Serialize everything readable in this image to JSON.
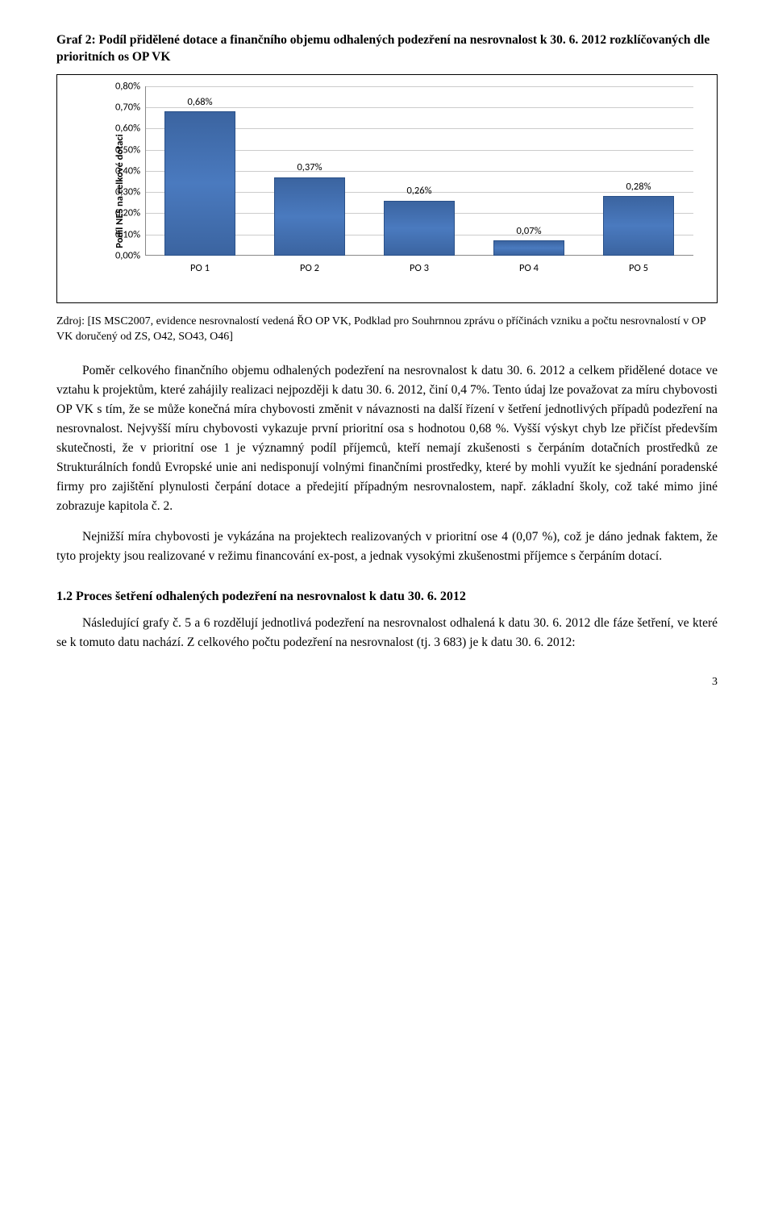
{
  "chart_title": "Graf 2: Podíl přidělené dotace a finančního objemu odhalených podezření na nesrovnalost k 30. 6. 2012 rozklíčovaných dle prioritních os OP VK",
  "chart": {
    "type": "bar",
    "ylabel": "Podíl NES na celkové dotaci",
    "categories": [
      "PO 1",
      "PO 2",
      "PO 3",
      "PO 4",
      "PO 5"
    ],
    "values_pct": [
      0.68,
      0.37,
      0.26,
      0.07,
      0.28
    ],
    "value_labels": [
      "0,68%",
      "0,37%",
      "0,26%",
      "0,07%",
      "0,28%"
    ],
    "ylim_max": 0.8,
    "yticks": [
      {
        "v": 0.0,
        "label": "0,00%"
      },
      {
        "v": 0.1,
        "label": "0,10%"
      },
      {
        "v": 0.2,
        "label": "0,20%"
      },
      {
        "v": 0.3,
        "label": "0,30%"
      },
      {
        "v": 0.4,
        "label": "0,40%"
      },
      {
        "v": 0.5,
        "label": "0,50%"
      },
      {
        "v": 0.6,
        "label": "0,60%"
      },
      {
        "v": 0.7,
        "label": "0,70%"
      },
      {
        "v": 0.8,
        "label": "0,80%"
      }
    ],
    "bar_color": "#4a7abf",
    "grid_color": "#cccccc",
    "background": "#ffffff",
    "label_fontsize": 12.5
  },
  "source_line": "Zdroj: [IS MSC2007, evidence nesrovnalostí vedená ŘO OP VK, Podklad pro Souhrnnou zprávu o příčinách vzniku a počtu nesrovnalostí v OP VK doručený od ZS, O42, SO43, O46]",
  "para1": "Poměr celkového finančního objemu odhalených podezření na nesrovnalost k datu 30. 6. 2012 a celkem přidělené dotace ve vztahu k projektům, které zahájily realizaci nejpozději k datu 30. 6. 2012, činí 0,4 7%. Tento údaj lze považovat za míru chybovosti OP VK s tím, že se může konečná míra chybovosti změnit v návaznosti na další řízení v šetření jednotlivých případů podezření na nesrovnalost. Nejvyšší míru chybovosti vykazuje první prioritní osa s hodnotou 0,68 %. Vyšší výskyt chyb lze přičíst především skutečnosti, že v prioritní ose 1 je významný podíl příjemců, kteří nemají zkušenosti s čerpáním dotačních prostředků ze Strukturálních fondů Evropské unie ani nedisponují volnými finančními prostředky, které by mohli využít ke sjednání poradenské firmy pro zajištění plynulosti čerpání dotace a předejití případným nesrovnalostem, např. základní školy, což také mimo jiné zobrazuje kapitola č. 2.",
  "para2": "Nejnižší míra chybovosti je vykázána na projektech realizovaných v prioritní ose 4 (0,07 %), což je dáno jednak faktem, že tyto projekty jsou realizované v režimu financování ex-post, a jednak vysokými zkušenostmi příjemce s čerpáním dotací.",
  "section_heading": "1.2    Proces šetření odhalených podezření na nesrovnalost k datu 30. 6. 2012",
  "para3": "Následující grafy č. 5 a 6 rozdělují jednotlivá podezření na nesrovnalost odhalená k datu 30. 6. 2012 dle fáze šetření, ve které se k tomuto datu nachází. Z celkového počtu podezření na nesrovnalost (tj. 3 683) je k datu 30. 6. 2012:",
  "page_number": "3"
}
